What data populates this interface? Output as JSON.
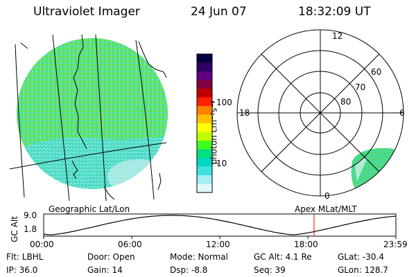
{
  "header": {
    "title": "Ultraviolet Imager",
    "date": "24 Jun 07",
    "time": "18:32:09 UT"
  },
  "colorbar": {
    "unit_label": "photon cm⁻²s⁻¹",
    "tick_labels": [
      "100",
      "10"
    ],
    "colors": [
      "#000040",
      "#300060",
      "#600080",
      "#800040",
      "#c00000",
      "#ff2000",
      "#ff8000",
      "#ffc000",
      "#ffff00",
      "#c0ff00",
      "#40ff20",
      "#00e080",
      "#00d8c0",
      "#40e0e0",
      "#a0f0f0",
      "#e0f8f8"
    ]
  },
  "polar_plot": {
    "mlt_labels": [
      "12",
      "18",
      "6",
      "0"
    ],
    "lat_labels": [
      "60",
      "70",
      "80"
    ]
  },
  "panel_labels": {
    "left": "Geographic Lat/Lon",
    "right": "Apex MLat/MLT"
  },
  "altitude_plot": {
    "ylabel": "GC Alt",
    "y_ticks": [
      "9.0",
      "1.8"
    ],
    "x_ticks": [
      "00:00",
      "06:00",
      "12:00",
      "18:00",
      "23:59"
    ]
  },
  "info": {
    "flt": "Flt: LBHL",
    "ip": "IP: 36.0",
    "door": "Door: Open",
    "gain": "Gain: 14",
    "mode": "Mode: Normal",
    "dsp": "Dsp:   -8.8",
    "gcalt": "GC Alt: 4.1 Re",
    "seq": "Seq: 39",
    "glat": "GLat: -30.4",
    "glon": "GLon: 128.7"
  }
}
